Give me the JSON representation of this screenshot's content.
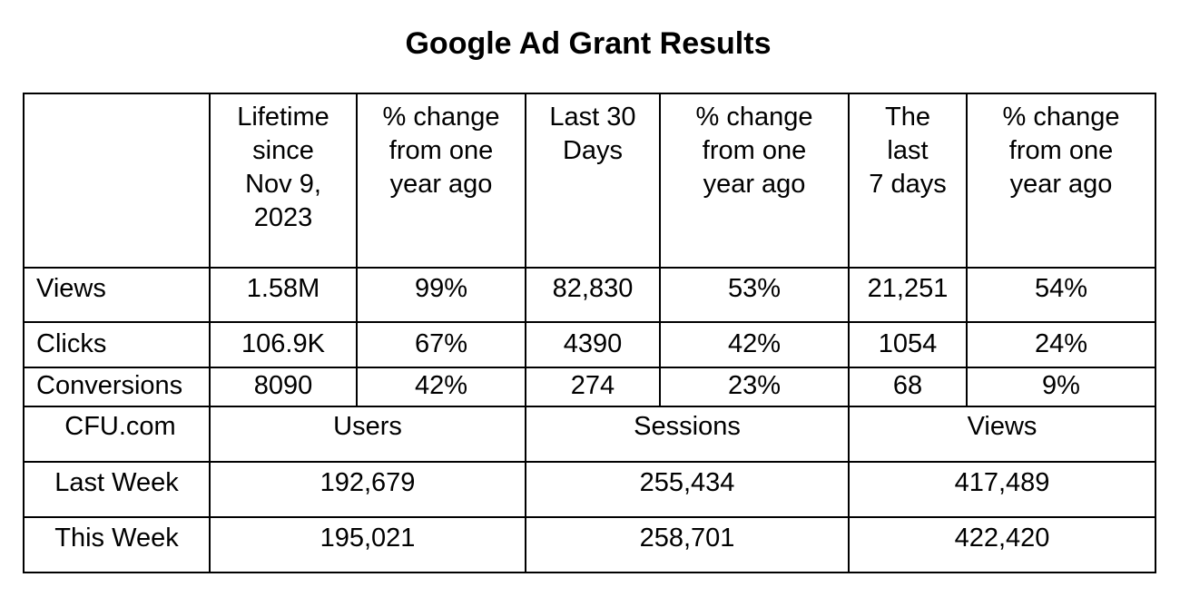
{
  "title": "Google Ad Grant Results",
  "ad_table": {
    "header": {
      "blank": "",
      "lifetime": [
        "Lifetime",
        "since",
        "Nov 9,",
        "2023"
      ],
      "pct_lifetime": [
        "% change",
        "from one",
        "year ago"
      ],
      "last30": [
        "Last 30",
        "Days"
      ],
      "pct_last30": [
        "% change",
        "from one",
        "year ago"
      ],
      "last7": [
        "The",
        "last",
        "7 days"
      ],
      "pct_last7": [
        "% change",
        "from one",
        "year ago"
      ]
    },
    "rows": [
      {
        "label": "Views",
        "lifetime": "1.58M",
        "pct_lifetime": "99%",
        "last30": "82,830",
        "pct_last30": "53%",
        "last7": "21,251",
        "pct_last7": "54%"
      },
      {
        "label": "Clicks",
        "lifetime": "106.9K",
        "pct_lifetime": "67%",
        "last30": "4390",
        "pct_last30": "42%",
        "last7": "1054",
        "pct_last7": "24%"
      },
      {
        "label": "Conversions",
        "lifetime": "8090",
        "pct_lifetime": "42%",
        "last30": "274",
        "pct_last30": "23%",
        "last7": "68",
        "pct_last7": "9%"
      }
    ]
  },
  "site_table": {
    "header": {
      "label": "CFU.com",
      "users": "Users",
      "sessions": "Sessions",
      "views": "Views"
    },
    "rows": [
      {
        "label": "Last Week",
        "users": "192,679",
        "sessions": "255,434",
        "views": "417,489"
      },
      {
        "label": "This Week",
        "users": "195,021",
        "sessions": "258,701",
        "views": "422,420"
      }
    ]
  }
}
